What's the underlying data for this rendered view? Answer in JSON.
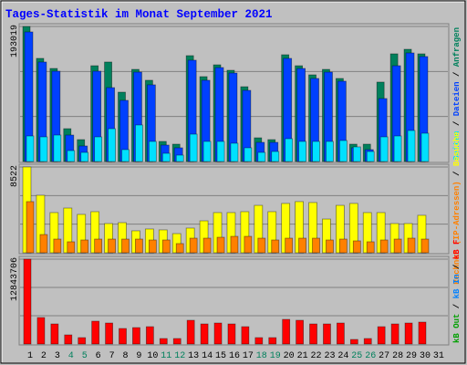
{
  "chart_data": [
    {
      "type": "bar",
      "title": "Tages-Statistik im Monat September 2021",
      "legend_separator": " / ",
      "ylim": [
        0,
        193019
      ],
      "yticks": [
        193019
      ],
      "series": [
        {
          "name": "Anfragen",
          "color": "#00805c",
          "values": [
            193019,
            147400,
            133000,
            46950,
            31300,
            136900,
            142200,
            99100,
            131700,
            116100,
            28700,
            24800,
            151300,
            121300,
            138200,
            130400,
            106900,
            33900,
            31300,
            152600,
            136900,
            123900,
            131700,
            118700,
            24800,
            24800,
            113500,
            153900,
            160400,
            153900,
            0
          ]
        },
        {
          "name": "Dateien",
          "color": "#0040ff",
          "values": [
            185200,
            142200,
            129100,
            37800,
            22200,
            129100,
            105600,
            87400,
            127800,
            109600,
            23500,
            19600,
            144800,
            116100,
            134300,
            126500,
            101700,
            27400,
            27400,
            147400,
            133000,
            118700,
            127800,
            114800,
            19600,
            17000,
            90000,
            136900,
            155200,
            150000,
            0
          ]
        },
        {
          "name": "Seiten",
          "color": "#00e0ff",
          "values": [
            36500,
            35200,
            37800,
            15600,
            13000,
            35200,
            46900,
            17000,
            52200,
            28700,
            11700,
            9100,
            39100,
            28700,
            28700,
            26100,
            19600,
            13000,
            14300,
            32600,
            28700,
            28700,
            28700,
            30000,
            20900,
            14300,
            35200,
            36500,
            44300,
            40400,
            0
          ]
        }
      ]
    },
    {
      "type": "bar",
      "legend_separator": " / ",
      "ylim": [
        0,
        8522
      ],
      "yticks": [
        8522
      ],
      "series": [
        {
          "name": "Besuche",
          "color": "#ffff00",
          "values": [
            8522,
            5710,
            3990,
            4440,
            3810,
            4080,
            2900,
            2990,
            2180,
            2360,
            2270,
            1900,
            2450,
            3170,
            3990,
            3990,
            4080,
            4710,
            4080,
            4900,
            5080,
            4990,
            3350,
            4710,
            4900,
            3990,
            3990,
            2900,
            2900,
            3720,
            0
          ]
        },
        {
          "name": "Rechner (IP-Adressen)",
          "color": "#ff8000",
          "values": [
            5080,
            1810,
            1360,
            1090,
            1270,
            1360,
            1360,
            1360,
            1360,
            1270,
            1270,
            910,
            1450,
            1450,
            1540,
            1630,
            1630,
            1450,
            1270,
            1450,
            1450,
            1450,
            1270,
            1360,
            1180,
            1090,
            1270,
            1360,
            1450,
            1360,
            0
          ]
        }
      ]
    },
    {
      "type": "bar",
      "legend_separator": " / ",
      "ylim": [
        0,
        12843706
      ],
      "yticks": [
        12843706
      ],
      "categories": [
        "1",
        "2",
        "3",
        "4",
        "5",
        "6",
        "7",
        "8",
        "9",
        "10",
        "11",
        "12",
        "13",
        "14",
        "15",
        "16",
        "17",
        "18",
        "19",
        "20",
        "21",
        "22",
        "23",
        "24",
        "25",
        "26",
        "27",
        "28",
        "29",
        "30",
        "31"
      ],
      "category_colors": [
        "#000000",
        "#000000",
        "#000000",
        "#00805c",
        "#00805c",
        "#000000",
        "#000000",
        "#000000",
        "#000000",
        "#000000",
        "#00805c",
        "#00805c",
        "#000000",
        "#000000",
        "#000000",
        "#000000",
        "#000000",
        "#00805c",
        "#00805c",
        "#000000",
        "#000000",
        "#000000",
        "#000000",
        "#000000",
        "#00805c",
        "#00805c",
        "#000000",
        "#000000",
        "#000000",
        "#000000",
        "#000000"
      ],
      "series": [
        {
          "name": "kB F",
          "color": "#ff0000",
          "values": [
            12843706,
            4005000,
            3038000,
            1381000,
            967000,
            3453000,
            3176000,
            2348000,
            2486000,
            2624000,
            829000,
            829000,
            3591000,
            3038000,
            3176000,
            3038000,
            2624000,
            967000,
            967000,
            3729000,
            3591000,
            3038000,
            3038000,
            3176000,
            691000,
            829000,
            2624000,
            3038000,
            3176000,
            3314000,
            0
          ]
        },
        {
          "name": "kB In",
          "color": "#0080ff"
        },
        {
          "name": "kB Out",
          "color": "#00a000"
        }
      ]
    }
  ]
}
